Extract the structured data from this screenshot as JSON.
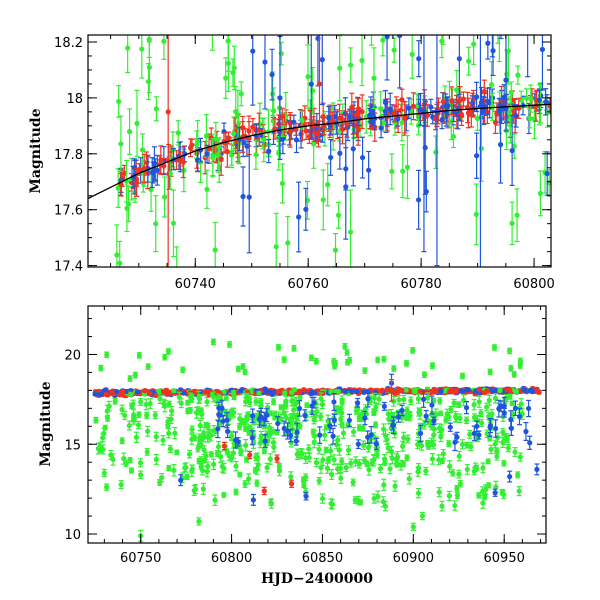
{
  "chart_data": [
    {
      "type": "scatter",
      "panel": "top",
      "title": "",
      "xlabel": "",
      "ylabel": "Magnitude",
      "xlim": [
        60721,
        60803
      ],
      "ylim": [
        18.225,
        17.395
      ],
      "y_inverted": true,
      "xticks_major": [
        60740,
        60760,
        60780,
        60800
      ],
      "xtick_labels": [
        "60740",
        "60760",
        "60780",
        "60800"
      ],
      "yticks_major": [
        17.4,
        17.6,
        17.8,
        18.0,
        18.2
      ],
      "ytick_labels": [
        "17.4",
        "17.6",
        "17.8",
        "18",
        "18.2"
      ],
      "model_curve": {
        "color": "#000000",
        "x": [
          60721,
          60725,
          60730,
          60735,
          60740,
          60745,
          60750,
          60755,
          60760,
          60765,
          60770,
          60775,
          60780,
          60785,
          60790,
          60795,
          60800,
          60803
        ],
        "y": [
          17.64,
          17.68,
          17.73,
          17.77,
          17.81,
          17.84,
          17.865,
          17.885,
          17.9,
          17.91,
          17.925,
          17.935,
          17.945,
          17.955,
          17.962,
          17.968,
          17.974,
          17.977
        ]
      },
      "series": [
        {
          "name": "green",
          "color": "#33ee33"
        },
        {
          "name": "blue",
          "color": "#1f55dd"
        },
        {
          "name": "red",
          "color": "#ee3322"
        }
      ]
    },
    {
      "type": "scatter",
      "panel": "bottom",
      "title": "",
      "xlabel": "HJD−2400000",
      "ylabel": "Magnitude",
      "xlim": [
        60721,
        60973
      ],
      "ylim": [
        22.7,
        9.5
      ],
      "y_inverted": true,
      "xticks_major": [
        60750,
        60800,
        60850,
        60900,
        60950
      ],
      "xtick_labels": [
        "60750",
        "60800",
        "60850",
        "60900",
        "60950"
      ],
      "yticks_major": [
        10,
        15,
        20
      ],
      "ytick_labels": [
        "10",
        "15",
        "20"
      ],
      "series": [
        {
          "name": "green",
          "color": "#33ee33"
        },
        {
          "name": "blue",
          "color": "#1f55dd"
        },
        {
          "name": "red",
          "color": "#ee3322"
        }
      ]
    }
  ]
}
